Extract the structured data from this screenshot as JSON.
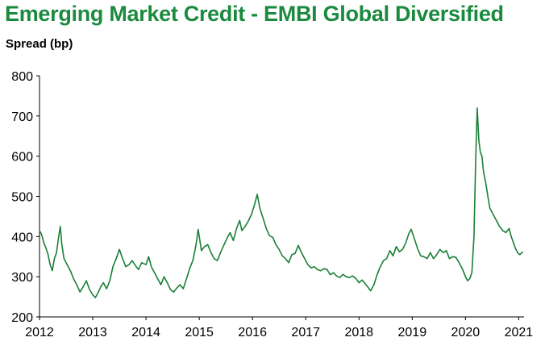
{
  "chart_data": {
    "type": "line",
    "title": "Emerging Market Credit - EMBI Global Diversified",
    "ylabel": "Spread (bp)",
    "xlabel": "",
    "xlim": [
      2012.0,
      2021.1
    ],
    "ylim": [
      200,
      800
    ],
    "x_ticks": [
      2012,
      2013,
      2014,
      2015,
      2016,
      2017,
      2018,
      2019,
      2020,
      2021
    ],
    "x_tick_labels": [
      "2012",
      "2013",
      "2014",
      "2015",
      "2016",
      "2017",
      "2018",
      "2019",
      "2020",
      "2021"
    ],
    "y_ticks": [
      200,
      300,
      400,
      500,
      600,
      700,
      800
    ],
    "y_tick_labels": [
      "200",
      "300",
      "400",
      "500",
      "600",
      "700",
      "800"
    ],
    "grid": false,
    "legend": "none",
    "line_color": "#1a7f37",
    "series": [
      {
        "name": "",
        "points": [
          [
            2012.0,
            415
          ],
          [
            2012.04,
            405
          ],
          [
            2012.08,
            385
          ],
          [
            2012.12,
            372
          ],
          [
            2012.16,
            355
          ],
          [
            2012.2,
            330
          ],
          [
            2012.24,
            315
          ],
          [
            2012.28,
            345
          ],
          [
            2012.32,
            360
          ],
          [
            2012.36,
            400
          ],
          [
            2012.39,
            425
          ],
          [
            2012.42,
            380
          ],
          [
            2012.46,
            345
          ],
          [
            2012.52,
            330
          ],
          [
            2012.58,
            315
          ],
          [
            2012.64,
            295
          ],
          [
            2012.7,
            280
          ],
          [
            2012.76,
            262
          ],
          [
            2012.82,
            275
          ],
          [
            2012.88,
            290
          ],
          [
            2012.94,
            268
          ],
          [
            2013.0,
            255
          ],
          [
            2013.05,
            248
          ],
          [
            2013.1,
            260
          ],
          [
            2013.15,
            275
          ],
          [
            2013.2,
            285
          ],
          [
            2013.26,
            270
          ],
          [
            2013.32,
            290
          ],
          [
            2013.38,
            325
          ],
          [
            2013.44,
            345
          ],
          [
            2013.5,
            368
          ],
          [
            2013.56,
            345
          ],
          [
            2013.62,
            325
          ],
          [
            2013.68,
            330
          ],
          [
            2013.74,
            340
          ],
          [
            2013.8,
            328
          ],
          [
            2013.86,
            318
          ],
          [
            2013.92,
            335
          ],
          [
            2014.0,
            330
          ],
          [
            2014.05,
            350
          ],
          [
            2014.1,
            325
          ],
          [
            2014.16,
            310
          ],
          [
            2014.22,
            295
          ],
          [
            2014.28,
            280
          ],
          [
            2014.34,
            300
          ],
          [
            2014.4,
            285
          ],
          [
            2014.46,
            268
          ],
          [
            2014.52,
            262
          ],
          [
            2014.58,
            272
          ],
          [
            2014.64,
            280
          ],
          [
            2014.7,
            270
          ],
          [
            2014.76,
            295
          ],
          [
            2014.82,
            320
          ],
          [
            2014.88,
            340
          ],
          [
            2014.94,
            380
          ],
          [
            2014.98,
            418
          ],
          [
            2015.04,
            365
          ],
          [
            2015.1,
            375
          ],
          [
            2015.16,
            380
          ],
          [
            2015.22,
            360
          ],
          [
            2015.28,
            345
          ],
          [
            2015.34,
            340
          ],
          [
            2015.4,
            360
          ],
          [
            2015.46,
            378
          ],
          [
            2015.52,
            395
          ],
          [
            2015.58,
            410
          ],
          [
            2015.64,
            390
          ],
          [
            2015.7,
            420
          ],
          [
            2015.76,
            440
          ],
          [
            2015.8,
            415
          ],
          [
            2015.86,
            425
          ],
          [
            2015.92,
            438
          ],
          [
            2015.98,
            455
          ],
          [
            2016.04,
            480
          ],
          [
            2016.09,
            505
          ],
          [
            2016.14,
            470
          ],
          [
            2016.2,
            445
          ],
          [
            2016.26,
            420
          ],
          [
            2016.32,
            402
          ],
          [
            2016.38,
            398
          ],
          [
            2016.44,
            380
          ],
          [
            2016.5,
            368
          ],
          [
            2016.56,
            352
          ],
          [
            2016.62,
            345
          ],
          [
            2016.68,
            335
          ],
          [
            2016.74,
            355
          ],
          [
            2016.8,
            358
          ],
          [
            2016.86,
            378
          ],
          [
            2016.92,
            360
          ],
          [
            2016.98,
            345
          ],
          [
            2017.04,
            330
          ],
          [
            2017.1,
            322
          ],
          [
            2017.16,
            325
          ],
          [
            2017.22,
            318
          ],
          [
            2017.28,
            315
          ],
          [
            2017.34,
            320
          ],
          [
            2017.4,
            318
          ],
          [
            2017.46,
            305
          ],
          [
            2017.52,
            310
          ],
          [
            2017.58,
            302
          ],
          [
            2017.64,
            298
          ],
          [
            2017.7,
            306
          ],
          [
            2017.76,
            300
          ],
          [
            2017.82,
            298
          ],
          [
            2017.88,
            302
          ],
          [
            2017.94,
            296
          ],
          [
            2018.0,
            285
          ],
          [
            2018.06,
            292
          ],
          [
            2018.12,
            282
          ],
          [
            2018.18,
            272
          ],
          [
            2018.22,
            265
          ],
          [
            2018.28,
            280
          ],
          [
            2018.34,
            305
          ],
          [
            2018.4,
            325
          ],
          [
            2018.46,
            340
          ],
          [
            2018.52,
            345
          ],
          [
            2018.58,
            365
          ],
          [
            2018.64,
            352
          ],
          [
            2018.7,
            375
          ],
          [
            2018.76,
            362
          ],
          [
            2018.82,
            368
          ],
          [
            2018.88,
            385
          ],
          [
            2018.94,
            408
          ],
          [
            2018.98,
            418
          ],
          [
            2019.04,
            395
          ],
          [
            2019.1,
            370
          ],
          [
            2019.16,
            352
          ],
          [
            2019.22,
            350
          ],
          [
            2019.28,
            345
          ],
          [
            2019.34,
            360
          ],
          [
            2019.4,
            345
          ],
          [
            2019.46,
            355
          ],
          [
            2019.52,
            368
          ],
          [
            2019.58,
            360
          ],
          [
            2019.64,
            365
          ],
          [
            2019.7,
            345
          ],
          [
            2019.76,
            350
          ],
          [
            2019.82,
            348
          ],
          [
            2019.88,
            335
          ],
          [
            2019.94,
            320
          ],
          [
            2020.0,
            300
          ],
          [
            2020.04,
            290
          ],
          [
            2020.08,
            295
          ],
          [
            2020.12,
            310
          ],
          [
            2020.16,
            400
          ],
          [
            2020.19,
            580
          ],
          [
            2020.22,
            720
          ],
          [
            2020.25,
            640
          ],
          [
            2020.28,
            610
          ],
          [
            2020.31,
            600
          ],
          [
            2020.34,
            560
          ],
          [
            2020.38,
            535
          ],
          [
            2020.42,
            500
          ],
          [
            2020.46,
            470
          ],
          [
            2020.52,
            455
          ],
          [
            2020.58,
            440
          ],
          [
            2020.64,
            425
          ],
          [
            2020.7,
            415
          ],
          [
            2020.76,
            410
          ],
          [
            2020.82,
            420
          ],
          [
            2020.86,
            400
          ],
          [
            2020.9,
            385
          ],
          [
            2020.94,
            370
          ],
          [
            2020.98,
            360
          ],
          [
            2021.02,
            355
          ],
          [
            2021.06,
            360
          ],
          [
            2021.08,
            362
          ]
        ]
      }
    ]
  }
}
